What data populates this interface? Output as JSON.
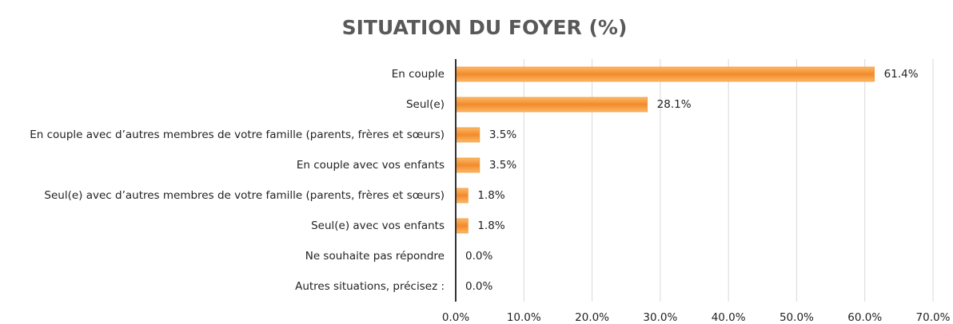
{
  "chart_data": {
    "type": "hbar",
    "title": "SITUATION DU FOYER (%)",
    "categories": [
      "En couple",
      "Seul(e)",
      "En couple avec d’autres membres de votre famille (parents, frères et sœurs)",
      "En couple avec vos enfants",
      "Seul(e) avec d’autres membres de votre famille (parents, frères et sœurs)",
      "Seul(e) avec vos enfants",
      "Ne souhaite pas répondre",
      "Autres situations, précisez :"
    ],
    "values": [
      61.4,
      28.1,
      3.5,
      3.5,
      1.8,
      1.8,
      0,
      0
    ],
    "value_labels": [
      "61.4%",
      "28.1%",
      "3.5%",
      "3.5%",
      "1.8%",
      "1.8%",
      "0.0%",
      "0.0%"
    ],
    "color": "#f59a3a",
    "xlim": [
      0,
      70
    ],
    "xticks": [
      {
        "value": 0,
        "label": "0.0%"
      },
      {
        "value": 10,
        "label": "10.0%"
      },
      {
        "value": 20,
        "label": "20.0%"
      },
      {
        "value": 30,
        "label": "30.0%"
      },
      {
        "value": 40,
        "label": "40.0%"
      },
      {
        "value": 50,
        "label": "50.0%"
      },
      {
        "value": 60,
        "label": "60.0%"
      },
      {
        "value": 70,
        "label": "70.0%"
      }
    ],
    "grid": true
  }
}
